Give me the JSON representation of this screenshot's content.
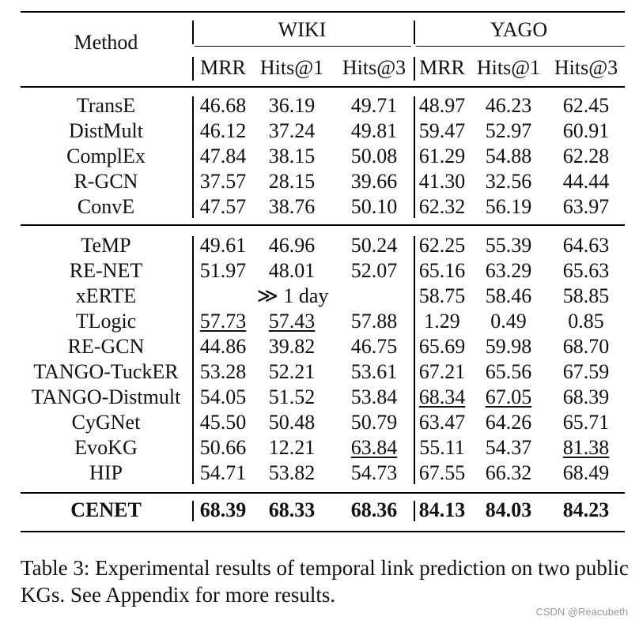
{
  "table": {
    "header": {
      "method": "Method",
      "groups": [
        "WIKI",
        "YAGO"
      ],
      "metrics": [
        "MRR",
        "Hits@1",
        "Hits@3",
        "MRR",
        "Hits@1",
        "Hits@3"
      ]
    },
    "sections": [
      [
        {
          "method": "TransE",
          "cells": [
            "46.68",
            "36.19",
            "49.71",
            "48.97",
            "46.23",
            "62.45"
          ]
        },
        {
          "method": "DistMult",
          "cells": [
            "46.12",
            "37.24",
            "49.81",
            "59.47",
            "52.97",
            "60.91"
          ]
        },
        {
          "method": "ComplEx",
          "cells": [
            "47.84",
            "38.15",
            "50.08",
            "61.29",
            "54.88",
            "62.28"
          ]
        },
        {
          "method": "R-GCN",
          "cells": [
            "37.57",
            "28.15",
            "39.66",
            "41.30",
            "32.56",
            "44.44"
          ]
        },
        {
          "method": "ConvE",
          "cells": [
            "47.57",
            "38.76",
            "50.10",
            "62.32",
            "56.19",
            "63.97"
          ]
        }
      ],
      [
        {
          "method": "TeMP",
          "cells": [
            "49.61",
            "46.96",
            "50.24",
            "62.25",
            "55.39",
            "64.63"
          ]
        },
        {
          "method": "RE-NET",
          "cells": [
            "51.97",
            "48.01",
            "52.07",
            "65.16",
            "63.29",
            "65.63"
          ]
        },
        {
          "method": "xERTE",
          "span_text": "≫ 1 day",
          "cells": [
            "",
            "",
            "",
            "58.75",
            "58.46",
            "58.85"
          ]
        },
        {
          "method": "TLogic",
          "cells": [
            "57.73",
            "57.43",
            "57.88",
            "1.29",
            "0.49",
            "0.85"
          ],
          "underline": [
            0,
            1
          ]
        },
        {
          "method": "RE-GCN",
          "cells": [
            "44.86",
            "39.82",
            "46.75",
            "65.69",
            "59.98",
            "68.70"
          ]
        },
        {
          "method": "TANGO-TuckER",
          "cells": [
            "53.28",
            "52.21",
            "53.61",
            "67.21",
            "65.56",
            "67.59"
          ]
        },
        {
          "method": "TANGO-Distmult",
          "cells": [
            "54.05",
            "51.52",
            "53.84",
            "68.34",
            "67.05",
            "68.39"
          ],
          "underline": [
            3,
            4
          ]
        },
        {
          "method": "CyGNet",
          "cells": [
            "45.50",
            "50.48",
            "50.79",
            "63.47",
            "64.26",
            "65.71"
          ]
        },
        {
          "method": "EvoKG",
          "cells": [
            "50.66",
            "12.21",
            "63.84",
            "55.11",
            "54.37",
            "81.38"
          ],
          "underline": [
            2,
            5
          ]
        },
        {
          "method": "HIP",
          "cells": [
            "54.71",
            "53.82",
            "54.73",
            "67.55",
            "66.32",
            "68.49"
          ]
        }
      ],
      [
        {
          "method": "CENET",
          "cells": [
            "68.39",
            "68.33",
            "68.36",
            "84.13",
            "84.03",
            "84.23"
          ],
          "bold": true
        }
      ]
    ]
  },
  "caption": "Table 3: Experimental results of temporal link prediction on two public KGs. See Appendix for more results.",
  "watermark": "CSDN @Reacubeth"
}
